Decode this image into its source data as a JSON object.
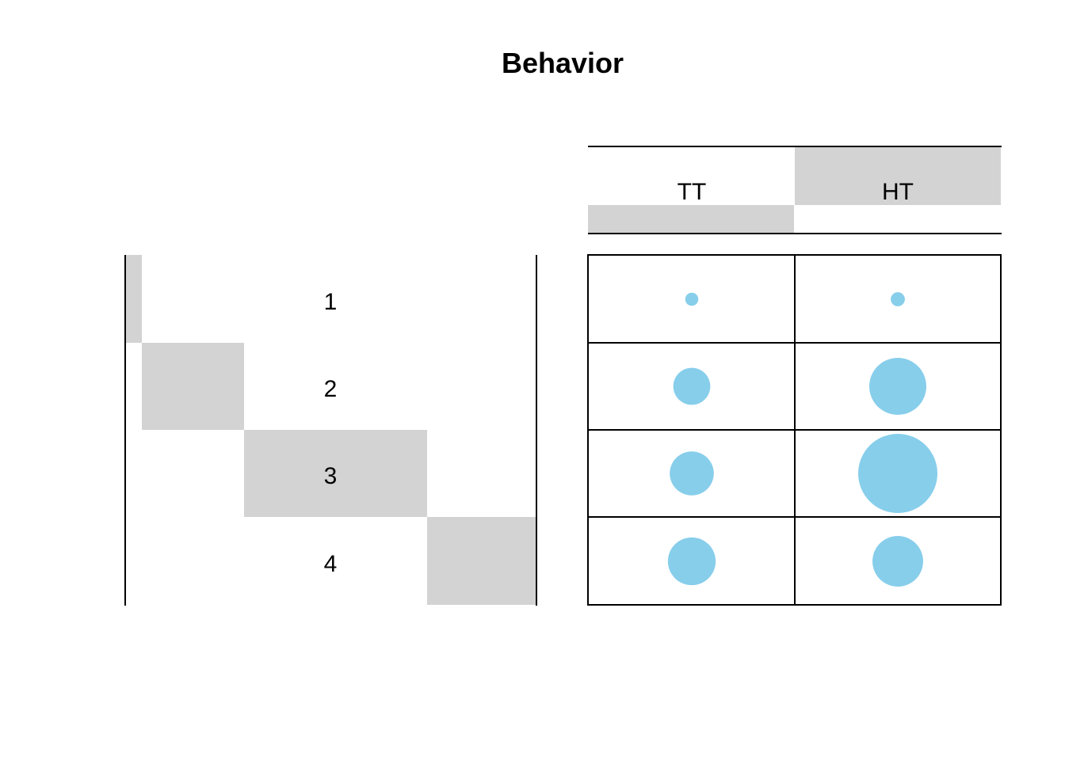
{
  "chart_data": {
    "type": "bubble-matrix",
    "title": "Behavior",
    "columns": [
      "TT",
      "HT"
    ],
    "column_shares": [
      0.5,
      0.5
    ],
    "rows": [
      "1",
      "2",
      "3",
      "4"
    ],
    "row_shares": [
      0.25,
      0.25,
      0.25,
      0.25
    ],
    "values": [
      [
        0.6,
        0.7
      ],
      [
        4.8,
        11.4
      ],
      [
        6.8,
        22.0
      ],
      [
        8.0,
        9.0
      ]
    ],
    "bubble_color": "#87CEEB",
    "shade_color": "#D3D3D3",
    "grid": true
  }
}
